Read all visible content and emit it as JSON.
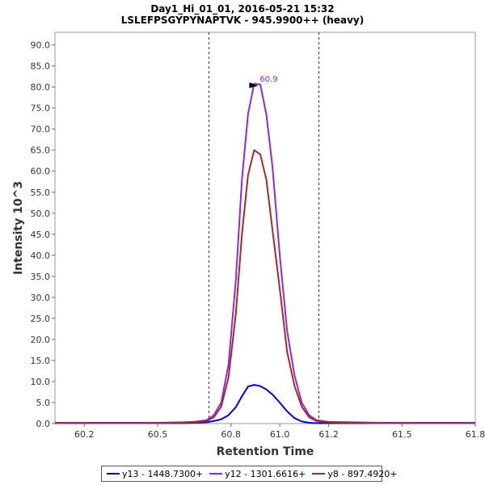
{
  "chart_data": {
    "type": "line",
    "title": "Day1_Hi_01_01, 2016-05-21 15:32",
    "subtitle": "LSLEFPSGYPYNAPTVK - 945.9900++ (heavy)",
    "xlabel": "Retention Time",
    "ylabel": "Intensity 10^3",
    "xlim": [
      60.08,
      61.8
    ],
    "ylim": [
      0,
      93
    ],
    "xticks": [
      "60.2",
      "60.5",
      "60.8",
      "61.0",
      "61.2",
      "61.5",
      "61.8"
    ],
    "xtick_values": [
      60.2,
      60.5,
      60.8,
      61.0,
      61.2,
      61.5,
      61.8
    ],
    "yticks": [
      "0.0",
      "5.0",
      "10.0",
      "15.0",
      "20.0",
      "25.0",
      "30.0",
      "35.0",
      "40.0",
      "45.0",
      "50.0",
      "55.0",
      "60.0",
      "65.0",
      "70.0",
      "75.0",
      "80.0",
      "85.0",
      "90.0"
    ],
    "ytick_values": [
      0,
      5,
      10,
      15,
      20,
      25,
      30,
      35,
      40,
      45,
      50,
      55,
      60,
      65,
      70,
      75,
      80,
      85,
      90
    ],
    "grid": false,
    "legend_position": "bottom",
    "boundaries": [
      60.71,
      61.16
    ],
    "peak_annotation": {
      "label": "60.9",
      "x": 60.905,
      "y": 80.5
    },
    "x": [
      60.08,
      60.2,
      60.3,
      60.4,
      60.5,
      60.6,
      60.65,
      60.7,
      60.73,
      60.76,
      60.79,
      60.82,
      60.845,
      60.87,
      60.895,
      60.92,
      60.945,
      60.97,
      61.0,
      61.03,
      61.06,
      61.09,
      61.12,
      61.15,
      61.2,
      61.3,
      61.4,
      61.5,
      61.6,
      61.7,
      61.8
    ],
    "series": [
      {
        "name": "y13 - 1448.7300+",
        "color": "#0000e0",
        "values": [
          0.1,
          0.1,
          0.1,
          0.1,
          0.1,
          0.1,
          0.2,
          0.3,
          0.6,
          1.0,
          2.0,
          3.9,
          6.5,
          8.8,
          9.2,
          8.9,
          8.1,
          6.9,
          5.0,
          2.9,
          1.3,
          0.5,
          0.2,
          0.1,
          0.1,
          0.1,
          0.1,
          0.1,
          0.1,
          0.1,
          0.1
        ]
      },
      {
        "name": "y12 - 1301.6616+",
        "color": "#8a2be2",
        "values": [
          0.2,
          0.2,
          0.2,
          0.2,
          0.2,
          0.3,
          0.4,
          0.8,
          2.0,
          5.0,
          14.0,
          34.0,
          58.0,
          73.5,
          80.8,
          80.6,
          73.5,
          61.0,
          40.0,
          22.0,
          11.5,
          5.0,
          2.0,
          0.8,
          0.4,
          0.3,
          0.2,
          0.2,
          0.2,
          0.2,
          0.2
        ]
      },
      {
        "name": "y8 - 897.4920+",
        "color": "#a52a2a",
        "values": [
          0.1,
          0.1,
          0.1,
          0.1,
          0.1,
          0.2,
          0.3,
          0.6,
          1.5,
          4.0,
          11.0,
          26.0,
          45.0,
          59.0,
          65.0,
          64.0,
          58.0,
          46.0,
          32.0,
          17.0,
          9.0,
          4.0,
          1.5,
          0.6,
          0.3,
          0.2,
          0.1,
          0.1,
          0.1,
          0.1,
          0.1
        ]
      }
    ]
  }
}
